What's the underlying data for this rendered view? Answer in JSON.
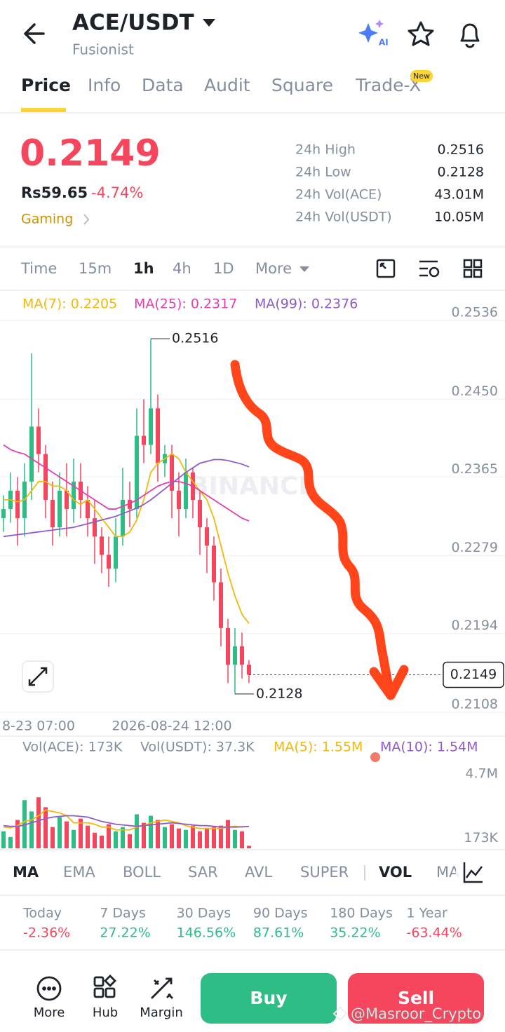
{
  "header": {
    "pair": "ACE/USDT",
    "project": "Fusionist",
    "ai_badge": "AI"
  },
  "tabs": [
    "Price",
    "Info",
    "Data",
    "Audit",
    "Square",
    "Trade-X"
  ],
  "new_badge": "New",
  "ticker": {
    "price": "0.2149",
    "local_price": "Rs59.65",
    "change": "-4.74%",
    "sector": "Gaming",
    "stats": [
      {
        "label": "24h High",
        "value": "0.2516"
      },
      {
        "label": "24h Low",
        "value": "0.2128"
      },
      {
        "label": "24h Vol(ACE)",
        "value": "43.01M"
      },
      {
        "label": "24h Vol(USDT)",
        "value": "10.05M"
      }
    ]
  },
  "intervals": [
    "Time",
    "15m",
    "1h",
    "4h",
    "1D",
    "More"
  ],
  "watermark": "BINANCE",
  "chart_data": [
    {
      "type": "candlestick",
      "categories": [
        null,
        null,
        null,
        null,
        null,
        "8-23 07:00",
        null,
        null,
        null,
        null,
        null,
        null,
        null,
        null,
        null,
        null,
        null,
        null,
        null,
        null,
        null,
        null,
        null,
        null,
        "2026-08-24 12:00",
        null,
        null,
        null,
        null,
        null,
        null,
        null,
        null,
        null,
        null,
        null
      ],
      "open": [
        0.232,
        0.233,
        0.235,
        0.232,
        0.236,
        0.242,
        0.239,
        0.234,
        0.231,
        0.235,
        0.233,
        0.236,
        0.234,
        0.232,
        0.23,
        0.228,
        0.2265,
        0.23,
        0.234,
        0.233,
        0.241,
        0.24,
        0.244,
        0.238,
        0.239,
        0.235,
        0.233,
        0.237,
        0.234,
        0.231,
        0.229,
        0.225,
        0.22,
        0.216,
        0.218,
        0.216
      ],
      "high": [
        0.2345,
        0.237,
        0.2365,
        0.238,
        0.25,
        0.244,
        0.24,
        0.236,
        0.237,
        0.238,
        0.2385,
        0.238,
        0.2355,
        0.234,
        0.231,
        0.23,
        0.232,
        0.2375,
        0.236,
        0.244,
        0.245,
        0.2516,
        0.2455,
        0.24,
        0.24,
        0.237,
        0.2385,
        0.2375,
        0.235,
        0.232,
        0.23,
        0.2265,
        0.221,
        0.22,
        0.2195,
        0.2165
      ],
      "low": [
        0.2305,
        0.2315,
        0.229,
        0.23,
        0.234,
        0.237,
        0.232,
        0.229,
        0.23,
        0.23,
        0.2315,
        0.232,
        0.23,
        0.227,
        0.226,
        0.2245,
        0.225,
        0.229,
        0.231,
        0.232,
        0.238,
        0.239,
        0.236,
        0.2365,
        0.232,
        0.23,
        0.232,
        0.232,
        0.228,
        0.226,
        0.223,
        0.218,
        0.214,
        0.2128,
        0.2145,
        0.214
      ],
      "close": [
        0.233,
        0.235,
        0.232,
        0.236,
        0.242,
        0.239,
        0.234,
        0.231,
        0.235,
        0.233,
        0.236,
        0.234,
        0.232,
        0.23,
        0.228,
        0.2265,
        0.23,
        0.234,
        0.233,
        0.241,
        0.24,
        0.244,
        0.238,
        0.239,
        0.235,
        0.233,
        0.237,
        0.234,
        0.231,
        0.229,
        0.225,
        0.22,
        0.216,
        0.218,
        0.216,
        0.2149
      ],
      "up_color": "#2ebd85",
      "down_color": "#f6465d",
      "series": [
        {
          "name": "MA(7): 0.2205",
          "color": "#f0b90b",
          "values": [
            0.234,
            0.234,
            0.2338,
            0.234,
            0.235,
            0.236,
            0.236,
            0.2355,
            0.2355,
            0.235,
            0.234,
            0.2335,
            0.234,
            0.233,
            0.232,
            0.231,
            0.23,
            0.23,
            0.2305,
            0.2318,
            0.234,
            0.237,
            0.238,
            0.2385,
            0.239,
            0.2385,
            0.237,
            0.236,
            0.235,
            0.234,
            0.232,
            0.229,
            0.226,
            0.2235,
            0.2215,
            0.2205
          ]
        },
        {
          "name": "MA(25): 0.2317",
          "color": "#e23fb0",
          "values": [
            0.24,
            0.2395,
            0.2392,
            0.239,
            0.2385,
            0.238,
            0.2375,
            0.237,
            0.2365,
            0.236,
            0.2355,
            0.235,
            0.2345,
            0.234,
            0.2335,
            0.233,
            0.233,
            0.2333,
            0.2336,
            0.234,
            0.2345,
            0.235,
            0.2355,
            0.2358,
            0.236,
            0.236,
            0.2358,
            0.2355,
            0.235,
            0.2345,
            0.234,
            0.2335,
            0.233,
            0.2325,
            0.232,
            0.2317
          ]
        },
        {
          "name": "MA(99): 0.2376",
          "color": "#8e5cc8",
          "values": [
            0.23,
            0.2301,
            0.2302,
            0.2303,
            0.2304,
            0.2305,
            0.2306,
            0.2307,
            0.2308,
            0.2309,
            0.231,
            0.2312,
            0.2314,
            0.2316,
            0.2318,
            0.232,
            0.2322,
            0.2325,
            0.2328,
            0.2331,
            0.2335,
            0.234,
            0.2346,
            0.2352,
            0.2358,
            0.2364,
            0.237,
            0.2375,
            0.238,
            0.2382,
            0.2384,
            0.2384,
            0.2383,
            0.2381,
            0.2379,
            0.2376
          ]
        }
      ],
      "ylim": [
        0.2108,
        0.2536
      ],
      "yticks": [
        0.2536,
        {
          "value": 0.245,
          "label": "0.2450"
        },
        0.2365,
        0.2279,
        0.2194,
        0.2108
      ],
      "grid": true
    },
    {
      "type": "bar",
      "usdt_volume_label": "Vol(USDT): 37.3K",
      "series": [
        {
          "name": "Vol(ACE): 173K",
          "values": [
            1200000,
            800000,
            2000000,
            3400000,
            2600000,
            3600000,
            2900000,
            1500000,
            2200000,
            1900000,
            1300000,
            2100000,
            1600000,
            1100000,
            900000,
            1700000,
            1200000,
            1500000,
            1000000,
            2400000,
            1800000,
            2300000,
            2000000,
            1500000,
            1700000,
            1400000,
            1300000,
            1600000,
            1200000,
            1400000,
            1500000,
            1600000,
            2000000,
            1300000,
            1200000,
            173000
          ]
        },
        {
          "name": "MA(5): 1.55M",
          "color": "#f0b90b",
          "values": [
            1500000,
            1450000,
            1600000,
            1900000,
            2000000,
            2300000,
            2700000,
            2600000,
            2500000,
            2300000,
            1800000,
            1800000,
            1800000,
            1700000,
            1500000,
            1500000,
            1300000,
            1300000,
            1300000,
            1500000,
            1600000,
            1800000,
            1900000,
            2000000,
            1900000,
            1800000,
            1600000,
            1500000,
            1400000,
            1400000,
            1400000,
            1400000,
            1500000,
            1550000,
            1500000,
            1550000
          ]
        },
        {
          "name": "MA(10): 1.54M",
          "color": "#8e5cc8",
          "values": [
            1600000,
            1550000,
            1550000,
            1650000,
            1800000,
            1950000,
            2100000,
            2200000,
            2250000,
            2300000,
            2300000,
            2250000,
            2200000,
            2050000,
            1900000,
            1800000,
            1700000,
            1650000,
            1600000,
            1550000,
            1600000,
            1650000,
            1700000,
            1750000,
            1800000,
            1750000,
            1700000,
            1650000,
            1600000,
            1600000,
            1550000,
            1500000,
            1500000,
            1500000,
            1520000,
            1540000
          ]
        }
      ],
      "ylim": [
        0,
        4700000
      ],
      "yticks": [
        {
          "value": 4700000,
          "label": "4.7M"
        },
        {
          "value": 173000,
          "label": "173K"
        }
      ]
    }
  ],
  "indicators": [
    "MA",
    "EMA",
    "BOLL",
    "SAR",
    "AVL",
    "SUPER",
    "VOL",
    "MA"
  ],
  "performance": [
    {
      "period": "Today",
      "change": "-2.36%"
    },
    {
      "period": "7 Days",
      "change": "27.22%"
    },
    {
      "period": "30 Days",
      "change": "146.56%"
    },
    {
      "period": "90 Days",
      "change": "87.61%"
    },
    {
      "period": "180 Days",
      "change": "35.22%"
    },
    {
      "period": "1 Year",
      "change": "-63.44%"
    }
  ],
  "actions": [
    "More",
    "Hub",
    "Margin"
  ],
  "buy": "Buy",
  "sell": "Sell",
  "credit": "@Masroor_Crypto"
}
